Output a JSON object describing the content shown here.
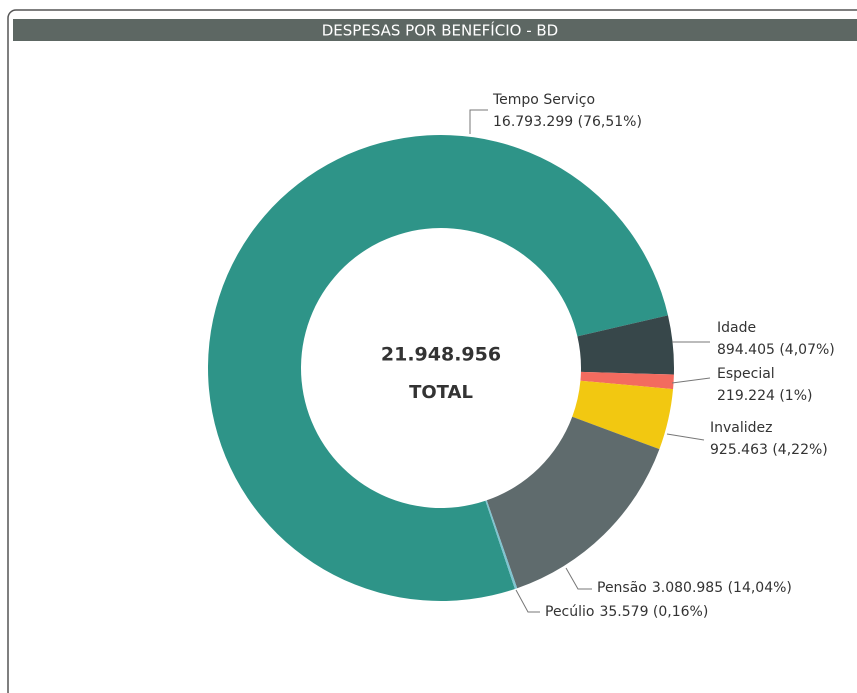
{
  "chart_data": {
    "type": "donut",
    "title": "DESPESAS POR BENEFÍCIO - BD",
    "categories": [
      "Tempo Serviço",
      "Idade",
      "Especial",
      "Invalidez",
      "Pensão",
      "Pecúlio"
    ],
    "values": [
      16793299,
      894405,
      219224,
      925463,
      3080985,
      35579
    ],
    "value_labels": [
      "16.793.299 (76,51%)",
      "894.405 (4,07%)",
      "219.224 (1%)",
      "925.463 (4,22%)",
      "3.080.985 (14,04%)",
      "35.579 (0,16%)"
    ],
    "colors": [
      "#2e9488",
      "#37474a",
      "#f36b5f",
      "#f2c811",
      "#5f6b6d",
      "#7fc4d0"
    ],
    "center_value": {
      "value": 21948956,
      "label": "21.948.956"
    },
    "center_caption": "TOTAL"
  }
}
